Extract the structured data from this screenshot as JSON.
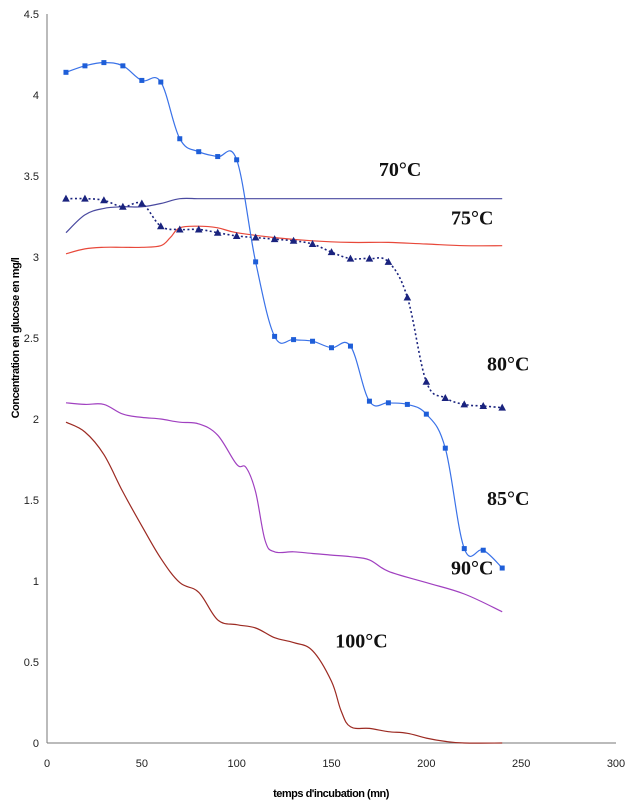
{
  "chart_data": {
    "type": "line",
    "title": "",
    "xlabel": "temps d'incubation (mn)",
    "ylabel": "Concentration en glucose en mg/l",
    "xlim": [
      0,
      300
    ],
    "ylim": [
      0,
      4.5
    ],
    "xticks": [
      "0",
      "50",
      "100",
      "150",
      "200",
      "250",
      "300"
    ],
    "yticks": [
      "0",
      "0.5",
      "1",
      "1.5",
      "2",
      "2.5",
      "3",
      "3.5",
      "4",
      "4.5"
    ],
    "grid": false,
    "series": [
      {
        "name": "70°C",
        "color": "#4a4aa0",
        "marker": "none",
        "dash": "solid",
        "x": [
          10,
          20,
          30,
          40,
          50,
          60,
          70,
          80,
          90,
          100,
          150,
          200,
          240
        ],
        "y": [
          3.15,
          3.26,
          3.3,
          3.31,
          3.31,
          3.33,
          3.36,
          3.36,
          3.36,
          3.36,
          3.36,
          3.36,
          3.36
        ]
      },
      {
        "name": "75°C",
        "color": "#e8483a",
        "marker": "none",
        "dash": "solid",
        "x": [
          10,
          20,
          30,
          40,
          50,
          60,
          65,
          70,
          80,
          90,
          100,
          120,
          140,
          160,
          180,
          200,
          220,
          240
        ],
        "y": [
          3.02,
          3.05,
          3.06,
          3.06,
          3.06,
          3.07,
          3.12,
          3.18,
          3.19,
          3.18,
          3.15,
          3.12,
          3.1,
          3.09,
          3.09,
          3.08,
          3.07,
          3.07
        ]
      },
      {
        "name": "80°C",
        "color": "#1a237e",
        "marker": "triangle",
        "dash": "dotted",
        "x": [
          10,
          20,
          30,
          40,
          50,
          60,
          70,
          80,
          90,
          100,
          110,
          120,
          130,
          140,
          150,
          160,
          170,
          180,
          190,
          200,
          210,
          220,
          230,
          240
        ],
        "y": [
          3.36,
          3.36,
          3.35,
          3.31,
          3.33,
          3.19,
          3.17,
          3.17,
          3.15,
          3.13,
          3.12,
          3.11,
          3.1,
          3.08,
          3.03,
          2.99,
          2.99,
          2.97,
          2.75,
          2.23,
          2.13,
          2.09,
          2.08,
          2.07
        ]
      },
      {
        "name": "85°C",
        "color": "#3a72e8",
        "marker": "square",
        "dash": "solid",
        "x": [
          10,
          20,
          30,
          40,
          50,
          60,
          70,
          80,
          90,
          100,
          110,
          120,
          130,
          140,
          150,
          160,
          170,
          180,
          190,
          200,
          210,
          220,
          230,
          240
        ],
        "y": [
          4.14,
          4.18,
          4.2,
          4.18,
          4.09,
          4.08,
          3.73,
          3.65,
          3.62,
          3.6,
          2.97,
          2.51,
          2.49,
          2.48,
          2.44,
          2.45,
          2.11,
          2.1,
          2.09,
          2.03,
          1.82,
          1.2,
          1.19,
          1.08
        ]
      },
      {
        "name": "90°C",
        "color": "#a040c0",
        "marker": "none",
        "dash": "solid",
        "x": [
          10,
          20,
          30,
          40,
          50,
          60,
          70,
          80,
          90,
          100,
          105,
          110,
          115,
          120,
          130,
          140,
          150,
          160,
          170,
          180,
          200,
          220,
          240
        ],
        "y": [
          2.1,
          2.09,
          2.09,
          2.03,
          2.01,
          2.0,
          1.98,
          1.97,
          1.9,
          1.72,
          1.7,
          1.55,
          1.25,
          1.18,
          1.18,
          1.17,
          1.16,
          1.15,
          1.13,
          1.06,
          0.99,
          0.92,
          0.81
        ]
      },
      {
        "name": "100°C",
        "color": "#9c2a22",
        "marker": "none",
        "dash": "solid",
        "x": [
          10,
          20,
          30,
          40,
          50,
          60,
          70,
          80,
          90,
          100,
          110,
          120,
          130,
          140,
          150,
          155,
          160,
          170,
          180,
          190,
          200,
          210,
          220,
          240
        ],
        "y": [
          1.98,
          1.92,
          1.78,
          1.55,
          1.34,
          1.14,
          0.99,
          0.93,
          0.76,
          0.73,
          0.71,
          0.65,
          0.62,
          0.57,
          0.38,
          0.2,
          0.1,
          0.09,
          0.07,
          0.06,
          0.03,
          0.01,
          0.0,
          0.0
        ]
      }
    ],
    "labels": [
      {
        "text": "70°C",
        "x": 175,
        "y": 3.5
      },
      {
        "text": "75°C",
        "x": 213,
        "y": 3.2
      },
      {
        "text": "80°C",
        "x": 232,
        "y": 2.3
      },
      {
        "text": "85°C",
        "x": 232,
        "y": 1.47
      },
      {
        "text": "90°C",
        "x": 213,
        "y": 1.04
      },
      {
        "text": "100°C",
        "x": 152,
        "y": 0.59
      }
    ]
  }
}
